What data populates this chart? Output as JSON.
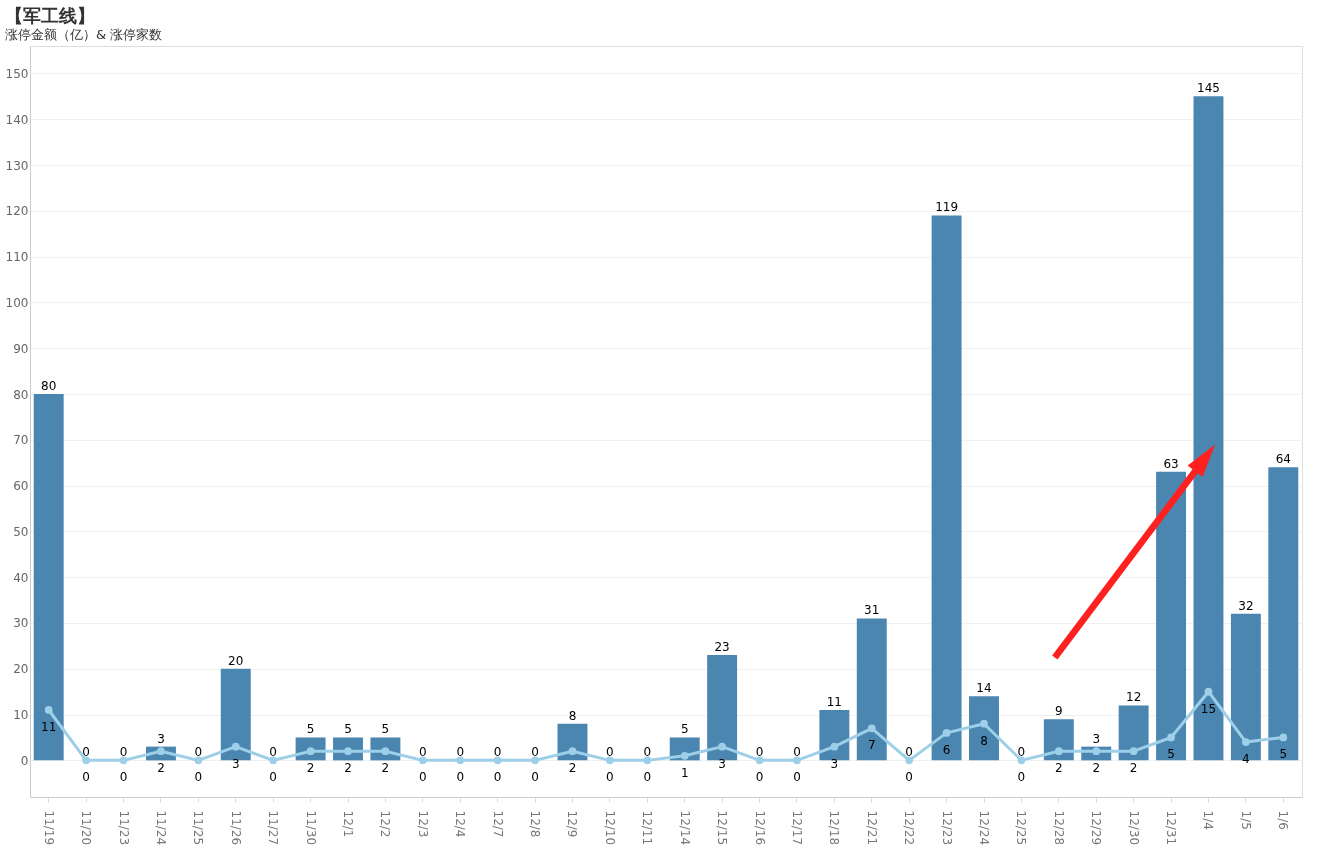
{
  "chart_data": {
    "type": "bar",
    "title": "【军工线】",
    "subtitle": "涨停金额（亿）& 涨停家数",
    "categories": [
      "11/19",
      "11/20",
      "11/23",
      "11/24",
      "11/25",
      "11/26",
      "11/27",
      "11/30",
      "12/1",
      "12/2",
      "12/3",
      "12/4",
      "12/7",
      "12/8",
      "12/9",
      "12/10",
      "12/11",
      "12/14",
      "12/15",
      "12/16",
      "12/17",
      "12/18",
      "12/21",
      "12/22",
      "12/23",
      "12/24",
      "12/25",
      "12/28",
      "12/29",
      "12/30",
      "12/31",
      "1/4",
      "1/5",
      "1/6"
    ],
    "series": [
      {
        "color": "#4a86b0",
        "values": [
          80,
          0,
          0,
          3,
          0,
          20,
          0,
          5,
          5,
          5,
          0,
          0,
          0,
          0,
          8,
          0,
          0,
          5,
          23,
          0,
          0,
          11,
          31,
          0,
          119,
          14,
          0,
          9,
          3,
          12,
          63,
          145,
          32,
          64
        ]
      },
      {
        "type": "line",
        "color": "#9dcfe8",
        "values": [
          11,
          0,
          0,
          2,
          0,
          3,
          0,
          2,
          2,
          2,
          0,
          0,
          0,
          0,
          2,
          0,
          0,
          1,
          3,
          0,
          0,
          3,
          7,
          0,
          6,
          8,
          0,
          2,
          2,
          2,
          5,
          15,
          4,
          5
        ]
      }
    ],
    "ylim": [
      -8,
      156
    ],
    "yticks": [
      0,
      10,
      20,
      30,
      40,
      50,
      60,
      70,
      80,
      90,
      100,
      110,
      120,
      130,
      140,
      150
    ],
    "grid": "y",
    "marker": "circle",
    "line_style": "solid",
    "data_labels": true
  }
}
